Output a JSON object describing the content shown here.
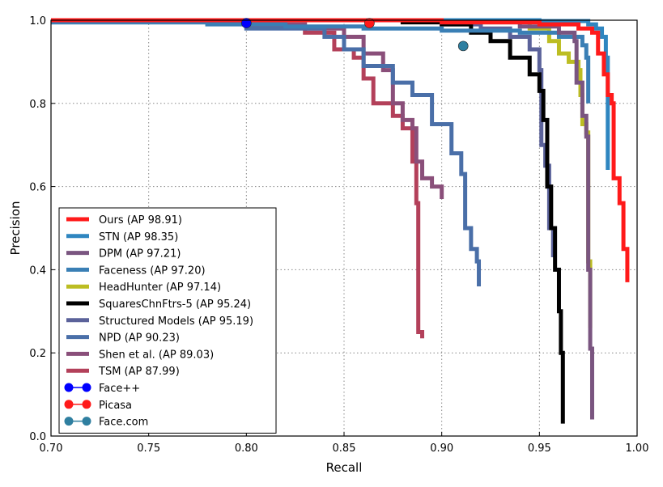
{
  "chart_data": {
    "type": "line",
    "title": "",
    "xlabel": "Recall",
    "ylabel": "Precision",
    "xlim": [
      0.7,
      1.0
    ],
    "ylim": [
      0.0,
      1.0
    ],
    "xticks": [
      "0.70",
      "0.75",
      "0.80",
      "0.85",
      "0.90",
      "0.95",
      "1.00"
    ],
    "yticks": [
      "0.0",
      "0.2",
      "0.4",
      "0.6",
      "0.8",
      "1.0"
    ],
    "grid": true,
    "legend_position": "lower-left",
    "series": [
      {
        "name": "Ours (AP 98.91)",
        "color": "#ff1a1a",
        "points": [
          [
            0.7,
            1.0
          ],
          [
            0.9,
            0.995
          ],
          [
            0.95,
            0.99
          ],
          [
            0.97,
            0.98
          ],
          [
            0.977,
            0.97
          ],
          [
            0.98,
            0.92
          ],
          [
            0.983,
            0.87
          ],
          [
            0.985,
            0.82
          ],
          [
            0.987,
            0.8
          ],
          [
            0.988,
            0.62
          ],
          [
            0.991,
            0.56
          ],
          [
            0.993,
            0.45
          ],
          [
            0.995,
            0.37
          ]
        ]
      },
      {
        "name": "STN (AP 98.35)",
        "color": "#2f86c0",
        "points": [
          [
            0.7,
            1.0
          ],
          [
            0.95,
            0.998
          ],
          [
            0.975,
            0.99
          ],
          [
            0.979,
            0.98
          ],
          [
            0.982,
            0.96
          ],
          [
            0.984,
            0.91
          ],
          [
            0.985,
            0.85
          ],
          [
            0.985,
            0.64
          ]
        ]
      },
      {
        "name": "DPM (AP 97.21)",
        "color": "#7a5580",
        "points": [
          [
            0.7,
            1.0
          ],
          [
            0.9,
            0.995
          ],
          [
            0.94,
            0.985
          ],
          [
            0.96,
            0.97
          ],
          [
            0.968,
            0.95
          ],
          [
            0.969,
            0.85
          ],
          [
            0.972,
            0.77
          ],
          [
            0.974,
            0.72
          ],
          [
            0.975,
            0.4
          ],
          [
            0.976,
            0.21
          ],
          [
            0.977,
            0.04
          ]
        ]
      },
      {
        "name": "Faceness (AP 97.20)",
        "color": "#3a7fb5",
        "points": [
          [
            0.7,
            0.995
          ],
          [
            0.78,
            0.99
          ],
          [
            0.82,
            0.985
          ],
          [
            0.86,
            0.98
          ],
          [
            0.9,
            0.975
          ],
          [
            0.94,
            0.97
          ],
          [
            0.96,
            0.96
          ],
          [
            0.972,
            0.94
          ],
          [
            0.974,
            0.91
          ],
          [
            0.975,
            0.8
          ]
        ]
      },
      {
        "name": "HeadHunter (AP 97.14)",
        "color": "#bcbd22",
        "points": [
          [
            0.7,
            1.0
          ],
          [
            0.93,
            0.998
          ],
          [
            0.945,
            0.98
          ],
          [
            0.955,
            0.95
          ],
          [
            0.96,
            0.92
          ],
          [
            0.965,
            0.9
          ],
          [
            0.97,
            0.88
          ],
          [
            0.971,
            0.82
          ],
          [
            0.972,
            0.75
          ],
          [
            0.974,
            0.73
          ],
          [
            0.975,
            0.42
          ],
          [
            0.976,
            0.26
          ]
        ]
      },
      {
        "name": "SquaresChnFtrs-5 (AP 95.24)",
        "color": "#000000",
        "points": [
          [
            0.7,
            1.0
          ],
          [
            0.88,
            0.995
          ],
          [
            0.9,
            0.99
          ],
          [
            0.915,
            0.97
          ],
          [
            0.925,
            0.95
          ],
          [
            0.935,
            0.91
          ],
          [
            0.945,
            0.87
          ],
          [
            0.95,
            0.83
          ],
          [
            0.952,
            0.76
          ],
          [
            0.954,
            0.6
          ],
          [
            0.956,
            0.5
          ],
          [
            0.958,
            0.4
          ],
          [
            0.96,
            0.3
          ],
          [
            0.961,
            0.2
          ],
          [
            0.962,
            0.03
          ]
        ]
      },
      {
        "name": "Structured Models (AP 95.19)",
        "color": "#5b629a",
        "points": [
          [
            0.7,
            1.0
          ],
          [
            0.9,
            0.99
          ],
          [
            0.92,
            0.98
          ],
          [
            0.935,
            0.96
          ],
          [
            0.945,
            0.93
          ],
          [
            0.95,
            0.88
          ],
          [
            0.951,
            0.7
          ],
          [
            0.953,
            0.65
          ],
          [
            0.955,
            0.5
          ],
          [
            0.957,
            0.43
          ]
        ]
      },
      {
        "name": "NPD (AP 90.23)",
        "color": "#4a6fa8",
        "points": [
          [
            0.7,
            0.995
          ],
          [
            0.8,
            0.98
          ],
          [
            0.84,
            0.96
          ],
          [
            0.85,
            0.93
          ],
          [
            0.86,
            0.89
          ],
          [
            0.875,
            0.85
          ],
          [
            0.885,
            0.82
          ],
          [
            0.895,
            0.75
          ],
          [
            0.905,
            0.68
          ],
          [
            0.91,
            0.63
          ],
          [
            0.912,
            0.5
          ],
          [
            0.915,
            0.45
          ],
          [
            0.918,
            0.42
          ],
          [
            0.919,
            0.36
          ]
        ]
      },
      {
        "name": "Shen et al. (AP 89.03)",
        "color": "#8a4f7a",
        "points": [
          [
            0.7,
            1.0
          ],
          [
            0.8,
            0.99
          ],
          [
            0.83,
            0.98
          ],
          [
            0.85,
            0.96
          ],
          [
            0.86,
            0.92
          ],
          [
            0.87,
            0.88
          ],
          [
            0.875,
            0.8
          ],
          [
            0.88,
            0.76
          ],
          [
            0.885,
            0.74
          ],
          [
            0.887,
            0.66
          ],
          [
            0.89,
            0.62
          ],
          [
            0.895,
            0.6
          ],
          [
            0.9,
            0.57
          ]
        ]
      },
      {
        "name": "TSM (AP 87.99)",
        "color": "#b3405a",
        "points": [
          [
            0.7,
            1.0
          ],
          [
            0.8,
            0.985
          ],
          [
            0.83,
            0.97
          ],
          [
            0.845,
            0.93
          ],
          [
            0.855,
            0.91
          ],
          [
            0.86,
            0.86
          ],
          [
            0.865,
            0.8
          ],
          [
            0.875,
            0.77
          ],
          [
            0.88,
            0.74
          ],
          [
            0.885,
            0.66
          ],
          [
            0.887,
            0.56
          ],
          [
            0.888,
            0.25
          ],
          [
            0.89,
            0.235
          ]
        ]
      }
    ],
    "markers": [
      {
        "name": "Face++",
        "color": "#0000ff",
        "point": [
          0.8,
          0.993
        ]
      },
      {
        "name": "Picasa",
        "color": "#ff1a1a",
        "point": [
          0.863,
          0.993
        ]
      },
      {
        "name": "Face.com",
        "color": "#2f7fa0",
        "point": [
          0.911,
          0.938
        ]
      }
    ]
  }
}
